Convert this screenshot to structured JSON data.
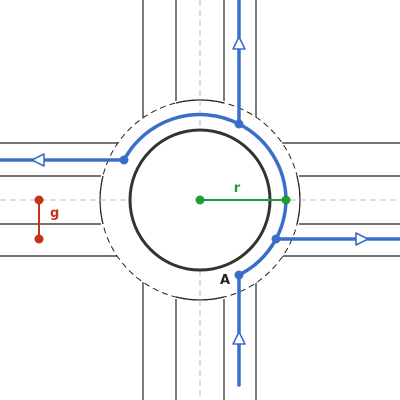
{
  "diagram": {
    "labels": {
      "radius": "r",
      "gap": "g",
      "entry_point": "A"
    },
    "colors": {
      "path": "#3a6ec9",
      "radius": "#1f9b3c",
      "gap": "#c8321b",
      "edge": "#222222",
      "island": "#333333"
    },
    "arms": [
      "north",
      "east",
      "south",
      "west"
    ],
    "route": {
      "enters_from": "south",
      "exits": [
        "north",
        "west",
        "east"
      ]
    }
  }
}
